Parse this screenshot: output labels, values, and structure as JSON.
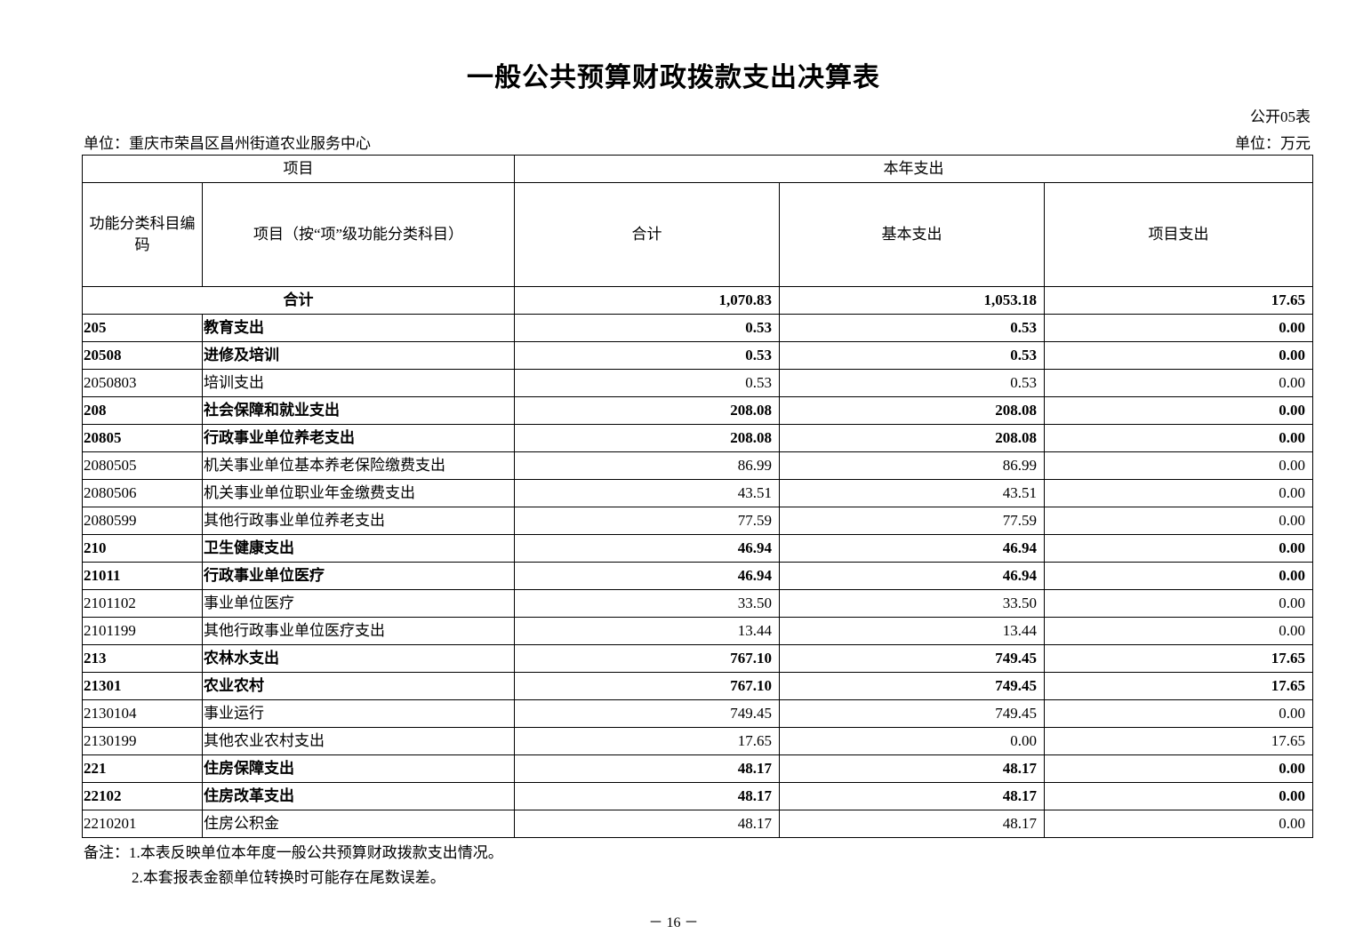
{
  "title": "一般公共预算财政拨款支出决算表",
  "form_no": "公开05表",
  "unit_name": "单位：重庆市荣昌区昌州街道农业服务中心",
  "unit_currency": "单位：万元",
  "headers": {
    "project": "项目",
    "current_year": "本年支出",
    "code": "功能分类科目编码",
    "item": "项目（按“项”级功能分类科目）",
    "total": "合计",
    "basic": "基本支出",
    "project_exp": "项目支出"
  },
  "total_row": {
    "label": "合计",
    "total": "1,070.83",
    "basic": "1,053.18",
    "project": "17.65"
  },
  "rows": [
    {
      "code": "205",
      "name": "教育支出",
      "total": "0.53",
      "basic": "0.53",
      "project": "0.00",
      "bold": true
    },
    {
      "code": "20508",
      "name": "进修及培训",
      "total": "0.53",
      "basic": "0.53",
      "project": "0.00",
      "bold": true
    },
    {
      "code": "2050803",
      "name": "培训支出",
      "total": "0.53",
      "basic": "0.53",
      "project": "0.00",
      "bold": false
    },
    {
      "code": "208",
      "name": "社会保障和就业支出",
      "total": "208.08",
      "basic": "208.08",
      "project": "0.00",
      "bold": true
    },
    {
      "code": "20805",
      "name": "行政事业单位养老支出",
      "total": "208.08",
      "basic": "208.08",
      "project": "0.00",
      "bold": true
    },
    {
      "code": "2080505",
      "name": "机关事业单位基本养老保险缴费支出",
      "total": "86.99",
      "basic": "86.99",
      "project": "0.00",
      "bold": false
    },
    {
      "code": "2080506",
      "name": "机关事业单位职业年金缴费支出",
      "total": "43.51",
      "basic": "43.51",
      "project": "0.00",
      "bold": false
    },
    {
      "code": "2080599",
      "name": "其他行政事业单位养老支出",
      "total": "77.59",
      "basic": "77.59",
      "project": "0.00",
      "bold": false
    },
    {
      "code": "210",
      "name": "卫生健康支出",
      "total": "46.94",
      "basic": "46.94",
      "project": "0.00",
      "bold": true
    },
    {
      "code": "21011",
      "name": "行政事业单位医疗",
      "total": "46.94",
      "basic": "46.94",
      "project": "0.00",
      "bold": true
    },
    {
      "code": "2101102",
      "name": "事业单位医疗",
      "total": "33.50",
      "basic": "33.50",
      "project": "0.00",
      "bold": false
    },
    {
      "code": "2101199",
      "name": "其他行政事业单位医疗支出",
      "total": "13.44",
      "basic": "13.44",
      "project": "0.00",
      "bold": false
    },
    {
      "code": "213",
      "name": "农林水支出",
      "total": "767.10",
      "basic": "749.45",
      "project": "17.65",
      "bold": true
    },
    {
      "code": "21301",
      "name": "农业农村",
      "total": "767.10",
      "basic": "749.45",
      "project": "17.65",
      "bold": true
    },
    {
      "code": "2130104",
      "name": "事业运行",
      "total": "749.45",
      "basic": "749.45",
      "project": "0.00",
      "bold": false
    },
    {
      "code": "2130199",
      "name": "其他农业农村支出",
      "total": "17.65",
      "basic": "0.00",
      "project": "17.65",
      "bold": false
    },
    {
      "code": "221",
      "name": "住房保障支出",
      "total": "48.17",
      "basic": "48.17",
      "project": "0.00",
      "bold": true
    },
    {
      "code": "22102",
      "name": "住房改革支出",
      "total": "48.17",
      "basic": "48.17",
      "project": "0.00",
      "bold": true
    },
    {
      "code": "2210201",
      "name": "住房公积金",
      "total": "48.17",
      "basic": "48.17",
      "project": "0.00",
      "bold": false
    }
  ],
  "notes": [
    "备注：1.本表反映单位本年度一般公共预算财政拨款支出情况。",
    "2.本套报表金额单位转换时可能存在尾数误差。"
  ],
  "page_number": "－ 16 －"
}
